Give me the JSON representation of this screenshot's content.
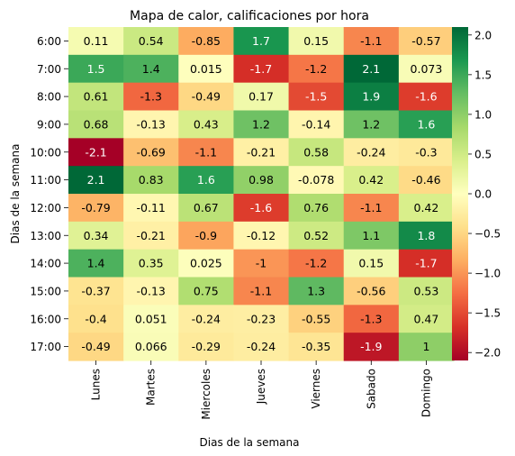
{
  "chart_data": {
    "type": "heatmap",
    "title": "Mapa de calor, calificaciones por hora",
    "xlabel": "Dias de la semana",
    "ylabel": "Dias de la semana",
    "x_categories": [
      "Lunes",
      "Martes",
      "Miercoles",
      "Jueves",
      "Viernes",
      "Sabado",
      "Domingo"
    ],
    "y_categories": [
      "6:00",
      "7:00",
      "8:00",
      "9:00",
      "10:00",
      "11:00",
      "12:00",
      "13:00",
      "14:00",
      "15:00",
      "16:00",
      "17:00"
    ],
    "values": [
      [
        0.11,
        0.54,
        -0.85,
        1.7,
        0.15,
        -1.1,
        -0.57
      ],
      [
        1.5,
        1.4,
        0.015,
        -1.7,
        -1.2,
        2.1,
        0.073
      ],
      [
        0.61,
        -1.3,
        -0.49,
        0.17,
        -1.5,
        1.9,
        -1.6
      ],
      [
        0.68,
        -0.13,
        0.43,
        1.2,
        -0.14,
        1.2,
        1.6
      ],
      [
        -2.1,
        -0.69,
        -1.1,
        -0.21,
        0.58,
        -0.24,
        -0.3
      ],
      [
        2.1,
        0.83,
        1.6,
        0.98,
        -0.078,
        0.42,
        -0.46
      ],
      [
        -0.79,
        -0.11,
        0.67,
        -1.6,
        0.76,
        -1.1,
        0.42
      ],
      [
        0.34,
        -0.21,
        -0.9,
        -0.12,
        0.52,
        1.1,
        1.8
      ],
      [
        1.4,
        0.35,
        0.025,
        -1,
        -1.2,
        0.15,
        -1.7
      ],
      [
        -0.37,
        -0.13,
        0.75,
        -1.1,
        1.3,
        -0.56,
        0.53
      ],
      [
        -0.4,
        0.051,
        -0.24,
        -0.23,
        -0.55,
        -1.3,
        0.47
      ],
      [
        -0.49,
        0.066,
        -0.29,
        -0.24,
        -0.35,
        -1.9,
        1
      ]
    ],
    "value_labels": [
      [
        "0.11",
        "0.54",
        "-0.85",
        "1.7",
        "0.15",
        "-1.1",
        "-0.57"
      ],
      [
        "1.5",
        "1.4",
        "0.015",
        "-1.7",
        "-1.2",
        "2.1",
        "0.073"
      ],
      [
        "0.61",
        "-1.3",
        "-0.49",
        "0.17",
        "-1.5",
        "1.9",
        "-1.6"
      ],
      [
        "0.68",
        "-0.13",
        "0.43",
        "1.2",
        "-0.14",
        "1.2",
        "1.6"
      ],
      [
        "-2.1",
        "-0.69",
        "-1.1",
        "-0.21",
        "0.58",
        "-0.24",
        "-0.3"
      ],
      [
        "2.1",
        "0.83",
        "1.6",
        "0.98",
        "-0.078",
        "0.42",
        "-0.46"
      ],
      [
        "-0.79",
        "-0.11",
        "0.67",
        "-1.6",
        "0.76",
        "-1.1",
        "0.42"
      ],
      [
        "0.34",
        "-0.21",
        "-0.9",
        "-0.12",
        "0.52",
        "1.1",
        "1.8"
      ],
      [
        "1.4",
        "0.35",
        "0.025",
        "-1",
        "-1.2",
        "0.15",
        "-1.7"
      ],
      [
        "-0.37",
        "-0.13",
        "0.75",
        "-1.1",
        "1.3",
        "-0.56",
        "0.53"
      ],
      [
        "-0.4",
        "0.051",
        "-0.24",
        "-0.23",
        "-0.55",
        "-1.3",
        "0.47"
      ],
      [
        "-0.49",
        "0.066",
        "-0.29",
        "-0.24",
        "-0.35",
        "-1.9",
        "1"
      ]
    ],
    "colormap": "RdYlGn",
    "vmin": -2.1,
    "vmax": 2.1,
    "colorbar": {
      "ticks": [
        2.0,
        1.5,
        1.0,
        0.5,
        0.0,
        -0.5,
        -1.0,
        -1.5,
        -2.0
      ],
      "tick_labels": [
        "2.0",
        "1.5",
        "1.0",
        "0.5",
        "0.0",
        "−0.5",
        "−1.0",
        "−1.5",
        "−2.0"
      ]
    },
    "annotations": true,
    "grid": false
  }
}
